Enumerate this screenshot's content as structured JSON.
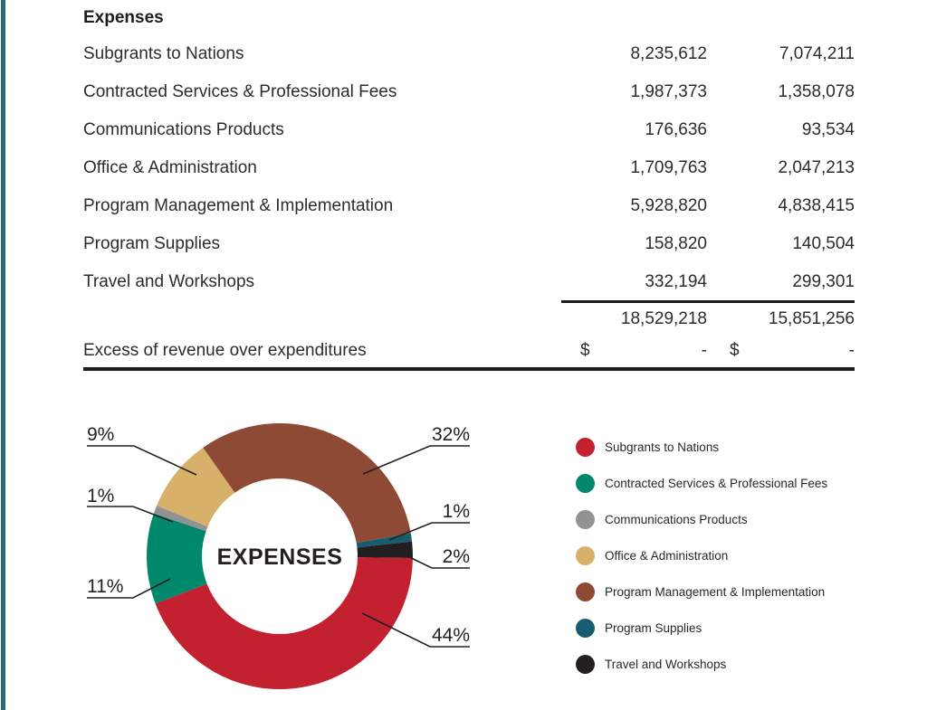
{
  "page": {
    "accent_bar_color": "#2b6972",
    "text_color": "#2e2b2d",
    "rule_color": "#1e1b1c"
  },
  "document": {
    "section_title": "Expenses",
    "rows": [
      {
        "label": "Subgrants to Nations",
        "current": "8,235,612",
        "prior": "7,074,211"
      },
      {
        "label": "Contracted Services & Professional Fees",
        "current": "1,987,373",
        "prior": "1,358,078"
      },
      {
        "label": "Communications Products",
        "current": "176,636",
        "prior": "93,534"
      },
      {
        "label": "Office & Administration",
        "current": "1,709,763",
        "prior": "2,047,213"
      },
      {
        "label": "Program Management & Implementation",
        "current": "5,928,820",
        "prior": "4,838,415"
      },
      {
        "label": "Program Supplies",
        "current": "158,820",
        "prior": "140,504"
      },
      {
        "label": "Travel and Workshops",
        "current": "332,194",
        "prior": "299,301"
      }
    ],
    "total_current": "18,529,218",
    "total_prior": "15,851,256",
    "excess_label": "Excess of revenue over expenditures",
    "excess_currency_current": "$",
    "excess_value_current": "-",
    "excess_currency_prior": "$",
    "excess_value_prior": "-"
  },
  "chart_data": {
    "type": "pie",
    "variant": "donut",
    "center_label": "EXPENSES",
    "legend_position": "right",
    "rotation_deg": 80,
    "draw_order": [
      5,
      6,
      0,
      1,
      2,
      3,
      4
    ],
    "slices": [
      {
        "id": "subgrants-to-nations",
        "name": "Subgrants to Nations",
        "pct": 44,
        "pct_label": "44%",
        "color": "#c32130"
      },
      {
        "id": "contracted-services",
        "name": "Contracted Services & Professional Fees",
        "pct": 11,
        "pct_label": "11%",
        "color": "#00886d"
      },
      {
        "id": "communications-products",
        "name": "Communications Products",
        "pct": 1,
        "pct_label": "1%",
        "color": "#929194"
      },
      {
        "id": "office-administration",
        "name": "Office & Administration",
        "pct": 9,
        "pct_label": "9%",
        "color": "#d7b169"
      },
      {
        "id": "program-management",
        "name": "Program Management & Implementation",
        "pct": 32,
        "pct_label": "32%",
        "color": "#8f4a36"
      },
      {
        "id": "program-supplies",
        "name": "Program Supplies",
        "pct": 1,
        "pct_label": "1%",
        "color": "#175d6d"
      },
      {
        "id": "travel-and-workshops",
        "name": "Travel and Workshops",
        "pct": 2,
        "pct_label": "2%",
        "color": "#231f20"
      }
    ]
  }
}
